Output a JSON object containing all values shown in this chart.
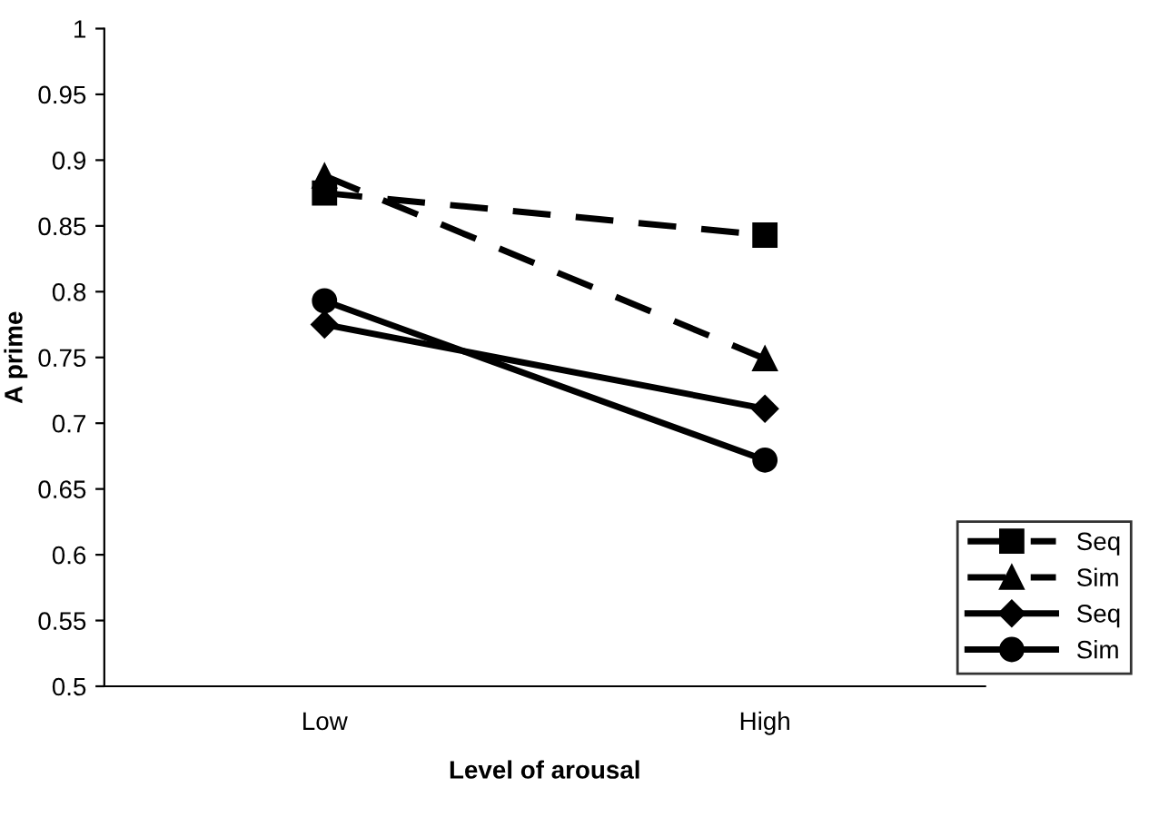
{
  "chart_data": {
    "type": "line",
    "xlabel": "Level of arousal",
    "ylabel": "A prime",
    "categories": [
      "Low",
      "High"
    ],
    "series": [
      {
        "name": "Seq",
        "color": "#000000",
        "values": [
          0.875,
          0.843
        ],
        "marker": "square",
        "line_style": "dashed"
      },
      {
        "name": "Sim",
        "color": "#000000",
        "values": [
          0.888,
          0.749
        ],
        "marker": "triangle",
        "line_style": "dashed"
      },
      {
        "name": "Seq",
        "color": "#000000",
        "values": [
          0.775,
          0.711
        ],
        "marker": "diamond",
        "line_style": "solid"
      },
      {
        "name": "Sim",
        "color": "#000000",
        "values": [
          0.793,
          0.672
        ],
        "marker": "circle",
        "line_style": "solid"
      }
    ],
    "ylim": [
      0.5,
      1
    ],
    "yticks": [
      0.5,
      0.55,
      0.6,
      0.65,
      0.7,
      0.75,
      0.8,
      0.85,
      0.9,
      0.95,
      1
    ],
    "grid": false,
    "legend": "bottom right"
  }
}
